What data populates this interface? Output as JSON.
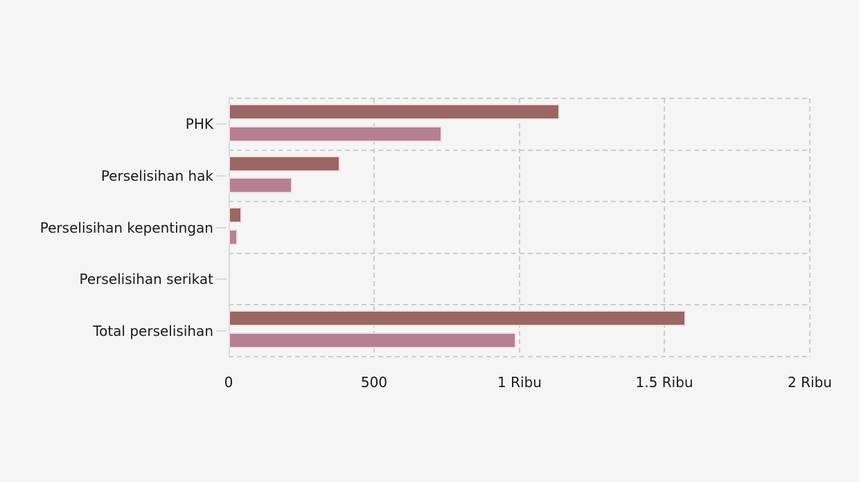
{
  "page": {
    "background_color": "#f5f5f5",
    "title": ""
  },
  "chart_data": {
    "type": "bar",
    "orientation": "horizontal",
    "title": "",
    "xlabel": "",
    "ylabel": "",
    "legend": "none",
    "grid": "dashed",
    "categories": [
      "PHK",
      "Perselisihan hak",
      "Perselisihan kepentingan",
      "Perselisihan serikat",
      "Total perselisihan"
    ],
    "series": [
      {
        "name": "dark",
        "color": "#9a6762",
        "values": [
          1139,
          384,
          46,
          0,
          1573
        ]
      },
      {
        "name": "light",
        "color": "#b77f92",
        "values": [
          735,
          220,
          30,
          0,
          989
        ]
      }
    ],
    "x_axis": {
      "min": 0,
      "max": 2000,
      "tick_values": [
        0,
        500,
        1000,
        1500,
        2000
      ],
      "tick_labels": [
        "0",
        "500",
        "1 Ribu",
        "1.5 Ribu",
        "2 Ribu"
      ]
    },
    "colors": {
      "bar_border": "#f0e0e4",
      "grid_line": "#cccccc",
      "axis_line": "#d9d9d9",
      "text": "#1a1a1a"
    }
  }
}
